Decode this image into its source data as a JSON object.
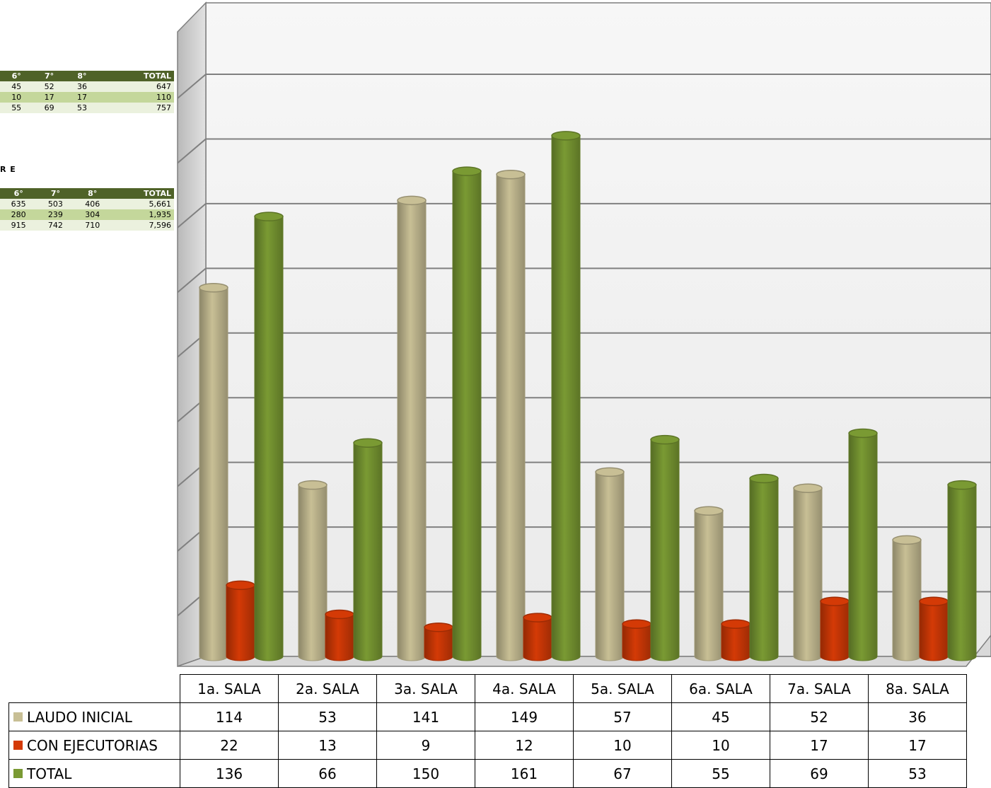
{
  "background_tables": {
    "section_label": "R E",
    "table1": {
      "headers": [
        "6°",
        "7°",
        "8°",
        "TOTAL"
      ],
      "rows": [
        [
          "45",
          "52",
          "36",
          "647"
        ],
        [
          "10",
          "17",
          "17",
          "110"
        ],
        [
          "55",
          "69",
          "53",
          "757"
        ]
      ]
    },
    "table2": {
      "headers": [
        "6°",
        "7°",
        "8°",
        "TOTAL"
      ],
      "rows": [
        [
          "635",
          "503",
          "406",
          "5,661"
        ],
        [
          "280",
          "239",
          "304",
          "1,935"
        ],
        [
          "915",
          "742",
          "710",
          "7,596"
        ]
      ]
    }
  },
  "chart_data": {
    "type": "bar",
    "style": "3d-cylinder",
    "title": "",
    "xlabel": "",
    "ylabel": "",
    "ylim": [
      0,
      180
    ],
    "y_gridline_step": 20,
    "y_tick_labels_visible": false,
    "grid": true,
    "legend": "data-table-below",
    "categories": [
      "1a. SALA",
      "2a. SALA",
      "3a. SALA",
      "4a. SALA",
      "5a. SALA",
      "6a. SALA",
      "7a. SALA",
      "8a. SALA"
    ],
    "series": [
      {
        "name": "LAUDO INICIAL",
        "color": "#c8bf95",
        "values": [
          114,
          53,
          141,
          149,
          57,
          45,
          52,
          36
        ]
      },
      {
        "name": "CON EJECUTORIAS",
        "color": "#d43a06",
        "values": [
          22,
          13,
          9,
          12,
          10,
          10,
          17,
          17
        ]
      },
      {
        "name": "TOTAL",
        "color": "#7a9a33",
        "values": [
          136,
          66,
          150,
          161,
          67,
          55,
          69,
          53
        ]
      }
    ]
  }
}
